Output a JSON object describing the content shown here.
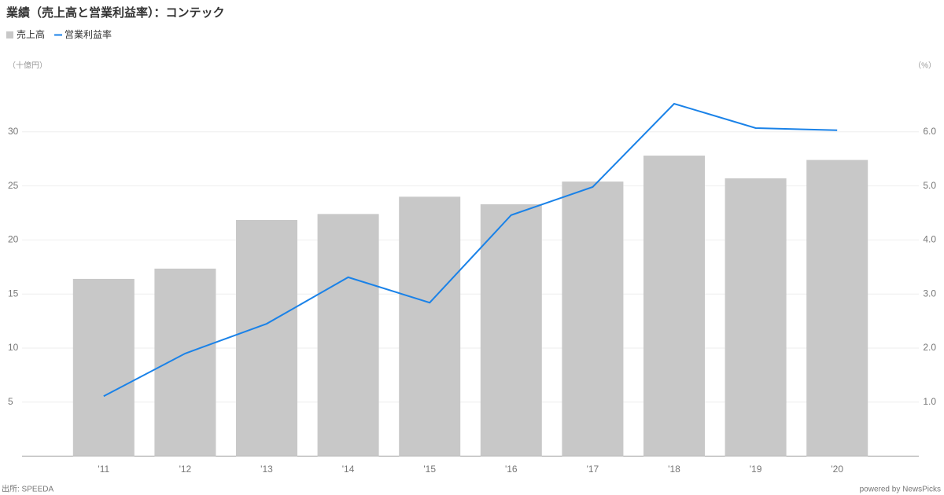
{
  "chart_data": {
    "type": "bar_line",
    "title": "業績（売上高と営業利益率）：コンテック",
    "y_label": "（十億円）",
    "y2_label": "（%）",
    "source": "出所: SPEEDA",
    "credit": "powered by NewsPicks",
    "categories": [
      "'11",
      "'12",
      "'13",
      "'14",
      "'15",
      "'16",
      "'17",
      "'18",
      "'19",
      "'20"
    ],
    "series": [
      {
        "name": "売上高",
        "type": "bar",
        "color": "#c8c8c8",
        "values": [
          16.4,
          17.35,
          21.85,
          22.4,
          24.0,
          23.3,
          25.4,
          27.8,
          25.7,
          27.4
        ]
      },
      {
        "name": "営業利益率",
        "type": "line",
        "axis": "y2",
        "color": "#1a82e8",
        "values": [
          1.11,
          1.9,
          2.45,
          3.31,
          2.84,
          4.46,
          4.98,
          6.52,
          6.07,
          6.03
        ]
      }
    ],
    "ylim": [
      0,
      35
    ],
    "yticks": [
      5,
      10,
      15,
      20,
      25,
      30
    ],
    "y2lim": [
      0,
      7
    ],
    "y2ticks": [
      {
        "value": 1,
        "label": "1.0"
      },
      {
        "value": 2,
        "label": "2.0"
      },
      {
        "value": 3,
        "label": "3.0"
      },
      {
        "value": 4,
        "label": "4.0"
      },
      {
        "value": 5,
        "label": "5.0"
      },
      {
        "value": 6,
        "label": "6.0"
      }
    ],
    "grid": true,
    "legend": "top-left"
  }
}
